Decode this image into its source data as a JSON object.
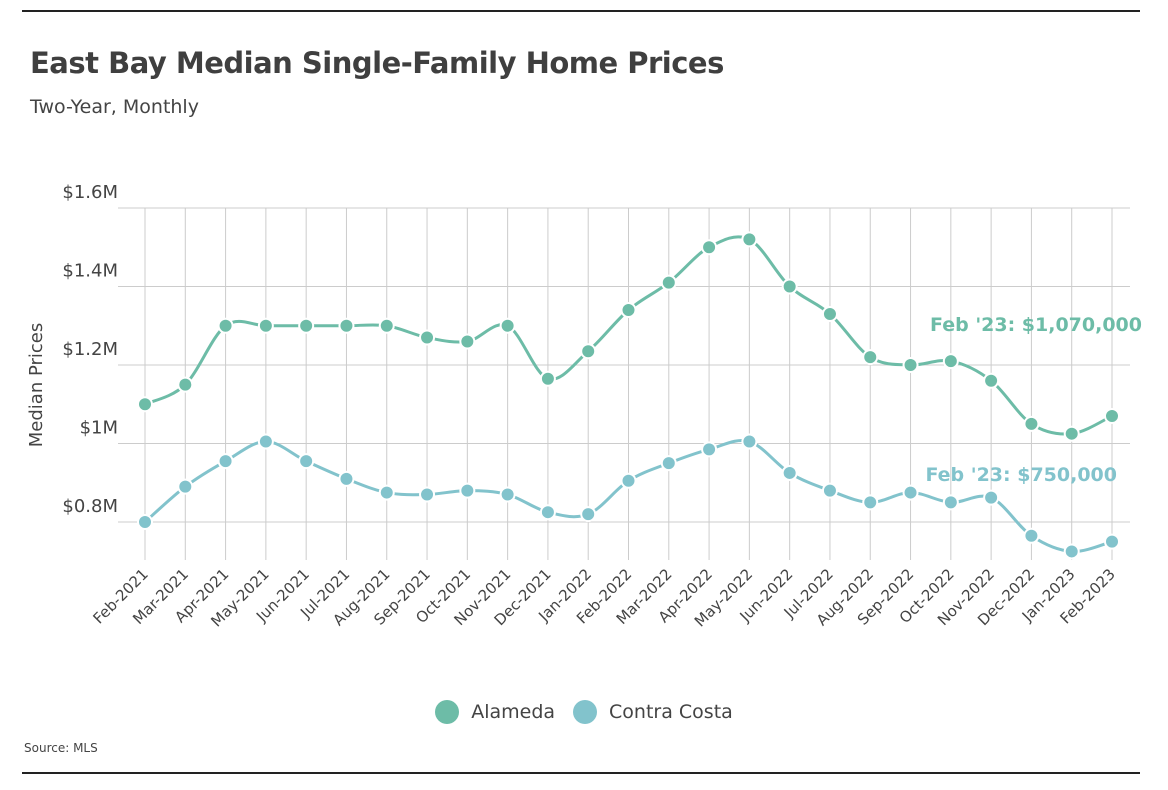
{
  "title": "East Bay Median Single-Family Home Prices",
  "subtitle": "Two-Year, Monthly",
  "source": "Source:  MLS",
  "colors": {
    "alameda": "#6dbca7",
    "contra_costa": "#82c3cc",
    "grid": "#cccccc",
    "text": "#444444"
  },
  "legend": [
    {
      "name": "Alameda",
      "color": "#6dbca7"
    },
    {
      "name": "Contra Costa",
      "color": "#82c3cc"
    }
  ],
  "chart_data": {
    "type": "line",
    "title": "East Bay Median Single-Family Home Prices",
    "subtitle": "Two-Year, Monthly",
    "xlabel": "",
    "ylabel": "Median Prices",
    "ylim": [
      700000,
      1600000
    ],
    "yticks": [
      {
        "value": 800000,
        "label": "$0.8M"
      },
      {
        "value": 1000000,
        "label": "$1M"
      },
      {
        "value": 1200000,
        "label": "$1.2M"
      },
      {
        "value": 1400000,
        "label": "$1.4M"
      },
      {
        "value": 1600000,
        "label": "$1.6M"
      }
    ],
    "grid": true,
    "legend_position": "bottom-center",
    "categories": [
      "Feb-2021",
      "Mar-2021",
      "Apr-2021",
      "May-2021",
      "Jun-2021",
      "Jul-2021",
      "Aug-2021",
      "Sep-2021",
      "Oct-2021",
      "Nov-2021",
      "Dec-2021",
      "Jan-2022",
      "Feb-2022",
      "Mar-2022",
      "Apr-2022",
      "May-2022",
      "Jun-2022",
      "Jul-2022",
      "Aug-2022",
      "Sep-2022",
      "Oct-2022",
      "Nov-2022",
      "Dec-2022",
      "Jan-2023",
      "Feb-2023"
    ],
    "series": [
      {
        "name": "Alameda",
        "color": "#6dbca7",
        "values": [
          1100000,
          1150000,
          1300000,
          1300000,
          1300000,
          1300000,
          1300000,
          1270000,
          1260000,
          1300000,
          1165000,
          1235000,
          1340000,
          1410000,
          1500000,
          1520000,
          1400000,
          1330000,
          1220000,
          1200000,
          1210000,
          1160000,
          1050000,
          1025000,
          1070000
        ]
      },
      {
        "name": "Contra Costa",
        "color": "#82c3cc",
        "values": [
          800000,
          890000,
          955000,
          1005000,
          955000,
          910000,
          875000,
          870000,
          880000,
          870000,
          825000,
          820000,
          905000,
          950000,
          985000,
          1005000,
          925000,
          880000,
          850000,
          875000,
          850000,
          862000,
          765000,
          725000,
          750000
        ]
      }
    ],
    "annotations": [
      {
        "series": "Alameda",
        "text": "Feb '23: $1,070,000"
      },
      {
        "series": "Contra Costa",
        "text": "Feb '23: $750,000"
      }
    ]
  }
}
